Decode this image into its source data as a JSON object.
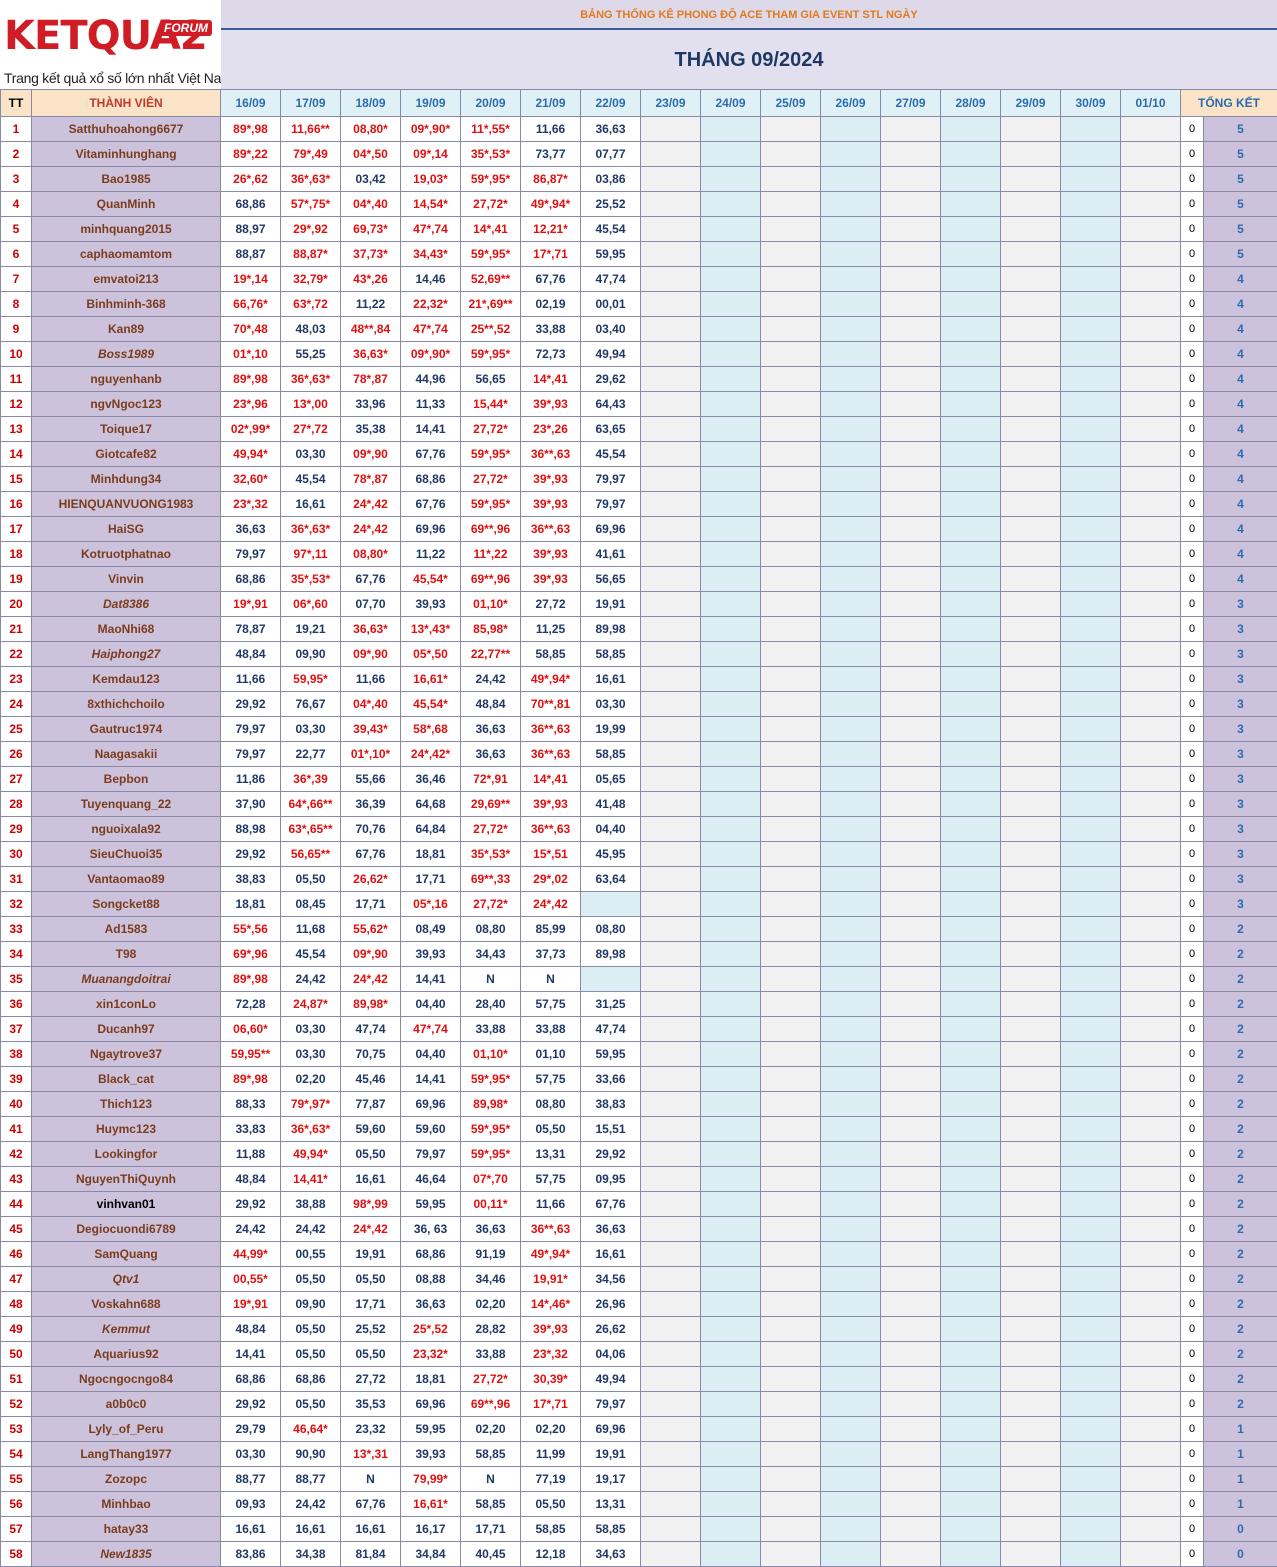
{
  "header": {
    "logo_text": "KETQUA2",
    "logo_forum": "FORUM",
    "logo_tagline": "Trang kết quả xổ số lớn nhất Việt Nam",
    "subtitle": "BẢNG THỐNG KÊ PHONG ĐỘ ACE THAM GIA EVENT STL NGÀY",
    "title": "THÁNG 09/2024"
  },
  "columns": {
    "tt": "TT",
    "member": "THÀNH VIÊN",
    "total": "TỔNG KẾT",
    "dates": [
      "16/09",
      "17/09",
      "18/09",
      "19/09",
      "20/09",
      "21/09",
      "22/09",
      "23/09",
      "24/09",
      "25/09",
      "26/09",
      "27/09",
      "28/09",
      "29/09",
      "30/09",
      "01/10"
    ]
  },
  "rows": [
    {
      "n": "1",
      "name": "Satthuhoahong6677",
      "v": [
        "89*,98",
        "11,66**",
        "08,80*",
        "09*,90*",
        "11*,55*",
        "11,66",
        "36,63"
      ],
      "z": "0",
      "s": "5"
    },
    {
      "n": "2",
      "name": "Vitaminhunghang",
      "v": [
        "89*,22",
        "79*,49",
        "04*,50",
        "09*,14",
        "35*,53*",
        "73,77",
        "07,77"
      ],
      "z": "0",
      "s": "5"
    },
    {
      "n": "3",
      "name": "Bao1985",
      "v": [
        "26*,62",
        "36*,63*",
        "03,42",
        "19,03*",
        "59*,95*",
        "86,87*",
        "03,86"
      ],
      "z": "0",
      "s": "5"
    },
    {
      "n": "4",
      "name": "QuanMinh",
      "v": [
        "68,86",
        "57*,75*",
        "04*,40",
        "14,54*",
        "27,72*",
        "49*,94*",
        "25,52"
      ],
      "z": "0",
      "s": "5"
    },
    {
      "n": "5",
      "name": "minhquang2015",
      "v": [
        "88,97",
        "29*,92",
        "69,73*",
        "47*,74",
        "14*,41",
        "12,21*",
        "45,54"
      ],
      "z": "0",
      "s": "5"
    },
    {
      "n": "6",
      "name": "caphaomamtom",
      "v": [
        "88,87",
        "88,87*",
        "37,73*",
        "34,43*",
        "59*,95*",
        "17*,71",
        "59,95"
      ],
      "z": "0",
      "s": "5"
    },
    {
      "n": "7",
      "name": "emvatoi213",
      "v": [
        "19*,14",
        "32,79*",
        "43*,26",
        "14,46",
        "52,69**",
        "67,76",
        "47,74"
      ],
      "z": "0",
      "s": "4"
    },
    {
      "n": "8",
      "name": "Binhminh-368",
      "v": [
        "66,76*",
        "63*,72",
        "11,22",
        "22,32*",
        "21*,69**",
        "02,19",
        "00,01"
      ],
      "z": "0",
      "s": "4"
    },
    {
      "n": "9",
      "name": "Kan89",
      "v": [
        "70*,48",
        "48,03",
        "48**,84",
        "47*,74",
        "25**,52",
        "33,88",
        "03,40"
      ],
      "z": "0",
      "s": "4"
    },
    {
      "n": "10",
      "name": "Boss1989",
      "it": true,
      "v": [
        "01*,10",
        "55,25",
        "36,63*",
        "09*,90*",
        "59*,95*",
        "72,73",
        "49,94"
      ],
      "z": "0",
      "s": "4"
    },
    {
      "n": "11",
      "name": "nguyenhanb",
      "v": [
        "89*,98",
        "36*,63*",
        "78*,87",
        "44,96",
        "56,65",
        "14*,41",
        "29,62"
      ],
      "z": "0",
      "s": "4"
    },
    {
      "n": "12",
      "name": "ngvNgoc123",
      "v": [
        "23*,96",
        "13*,00",
        "33,96",
        "11,33",
        "15,44*",
        "39*,93",
        "64,43"
      ],
      "z": "0",
      "s": "4"
    },
    {
      "n": "13",
      "name": "Toique17",
      "v": [
        "02*,99*",
        "27*,72",
        "35,38",
        "14,41",
        "27,72*",
        "23*,26",
        "63,65"
      ],
      "z": "0",
      "s": "4"
    },
    {
      "n": "14",
      "name": "Giotcafe82",
      "v": [
        "49,94*",
        "03,30",
        "09*,90",
        "67,76",
        "59*,95*",
        "36**,63",
        "45,54"
      ],
      "z": "0",
      "s": "4"
    },
    {
      "n": "15",
      "name": "Minhdung34",
      "v": [
        "32,60*",
        "45,54",
        "78*,87",
        "68,86",
        "27,72*",
        "39*,93",
        "79,97"
      ],
      "z": "0",
      "s": "4"
    },
    {
      "n": "16",
      "name": "HIENQUANVUONG1983",
      "v": [
        "23*,32",
        "16,61",
        "24*,42",
        "67,76",
        "59*,95*",
        "39*,93",
        "79,97"
      ],
      "z": "0",
      "s": "4"
    },
    {
      "n": "17",
      "name": "HaiSG",
      "v": [
        "36,63",
        "36*,63*",
        "24*,42",
        "69,96",
        "69**,96",
        "36**,63",
        "69,96"
      ],
      "z": "0",
      "s": "4"
    },
    {
      "n": "18",
      "name": "Kotruotphatnao",
      "v": [
        "79,97",
        "97*,11",
        "08,80*",
        "11,22",
        "11*,22",
        "39*,93",
        "41,61"
      ],
      "z": "0",
      "s": "4"
    },
    {
      "n": "19",
      "name": "Vinvin",
      "v": [
        "68,86",
        "35*,53*",
        "67,76",
        "45,54*",
        "69**,96",
        "39*,93",
        "56,65"
      ],
      "z": "0",
      "s": "4"
    },
    {
      "n": "20",
      "name": "Dat8386",
      "it": true,
      "v": [
        "19*,91",
        "06*,60",
        "07,70",
        "39,93",
        "01,10*",
        "27,72",
        "19,91"
      ],
      "z": "0",
      "s": "3"
    },
    {
      "n": "21",
      "name": "MaoNhi68",
      "v": [
        "78,87",
        "19,21",
        "36,63*",
        "13*,43*",
        "85,98*",
        "11,25",
        "89,98"
      ],
      "z": "0",
      "s": "3"
    },
    {
      "n": "22",
      "name": "Haiphong27",
      "it": true,
      "v": [
        "48,84",
        "09,90",
        "09*,90",
        "05*,50",
        "22,77**",
        "58,85",
        "58,85"
      ],
      "z": "0",
      "s": "3"
    },
    {
      "n": "23",
      "name": "Kemdau123",
      "v": [
        "11,66",
        "59,95*",
        "11,66",
        "16,61*",
        "24,42",
        "49*,94*",
        "16,61"
      ],
      "z": "0",
      "s": "3"
    },
    {
      "n": "24",
      "name": "8xthichchoilo",
      "v": [
        "29,92",
        "76,67",
        "04*,40",
        "45,54*",
        "48,84",
        "70**,81",
        "03,30"
      ],
      "z": "0",
      "s": "3"
    },
    {
      "n": "25",
      "name": "Gautruc1974",
      "v": [
        "79,97",
        "03,30",
        "39,43*",
        "58*,68",
        "36,63",
        "36**,63",
        "19,99"
      ],
      "z": "0",
      "s": "3"
    },
    {
      "n": "26",
      "name": "Naagasakii",
      "v": [
        "79,97",
        "22,77",
        "01*,10*",
        "24*,42*",
        "36,63",
        "36**,63",
        "58,85"
      ],
      "z": "0",
      "s": "3"
    },
    {
      "n": "27",
      "name": "Bepbon",
      "v": [
        "11,86",
        "36*,39",
        "55,66",
        "36,46",
        "72*,91",
        "14*,41",
        "05,65"
      ],
      "z": "0",
      "s": "3"
    },
    {
      "n": "28",
      "name": "Tuyenquang_22",
      "v": [
        "37,90",
        "64*,66**",
        "36,39",
        "64,68",
        "29,69**",
        "39*,93",
        "41,48"
      ],
      "z": "0",
      "s": "3"
    },
    {
      "n": "29",
      "name": "nguoixala92",
      "v": [
        "88,98",
        "63*,65**",
        "70,76",
        "64,84",
        "27,72*",
        "36**,63",
        "04,40"
      ],
      "z": "0",
      "s": "3"
    },
    {
      "n": "30",
      "name": "SieuChuoi35",
      "v": [
        "29,92",
        "56,65**",
        "67,76",
        "18,81",
        "35*,53*",
        "15*,51",
        "45,95"
      ],
      "z": "0",
      "s": "3"
    },
    {
      "n": "31",
      "name": "Vantaomao89",
      "v": [
        "38,83",
        "05,50",
        "26,62*",
        "17,71",
        "69**,33",
        "29*,02",
        "63,64"
      ],
      "z": "0",
      "s": "3"
    },
    {
      "n": "32",
      "name": "Songcket88",
      "v": [
        "18,81",
        "08,45",
        "17,71",
        "05*,16",
        "27,72*",
        "24*,42",
        ""
      ],
      "z": "0",
      "s": "3"
    },
    {
      "n": "33",
      "name": "Ad1583",
      "v": [
        "55*,56",
        "11,68",
        "55,62*",
        "08,49",
        "08,80",
        "85,99",
        "08,80"
      ],
      "z": "0",
      "s": "2"
    },
    {
      "n": "34",
      "name": "T98",
      "v": [
        "69*,96",
        "45,54",
        "09*,90",
        "39,93",
        "34,43",
        "37,73",
        "89,98"
      ],
      "z": "0",
      "s": "2"
    },
    {
      "n": "35",
      "name": "Muanangdoitrai",
      "it": true,
      "v": [
        "89*,98",
        "24,42",
        "24*,42",
        "14,41",
        "N",
        "N",
        ""
      ],
      "z": "0",
      "s": "2"
    },
    {
      "n": "36",
      "name": "xin1conLo",
      "v": [
        "72,28",
        "24,87*",
        "89,98*",
        "04,40",
        "28,40",
        "57,75",
        "31,25"
      ],
      "z": "0",
      "s": "2"
    },
    {
      "n": "37",
      "name": "Ducanh97",
      "v": [
        "06,60*",
        "03,30",
        "47,74",
        "47*,74",
        "33,88",
        "33,88",
        "47,74"
      ],
      "z": "0",
      "s": "2"
    },
    {
      "n": "38",
      "name": "Ngaytrove37",
      "v": [
        "59,95**",
        "03,30",
        "70,75",
        "04,40",
        "01,10*",
        "01,10",
        "59,95"
      ],
      "z": "0",
      "s": "2"
    },
    {
      "n": "39",
      "name": "Black_cat",
      "v": [
        "89*,98",
        "02,20",
        "45,46",
        "14,41",
        "59*,95*",
        "57,75",
        "33,66"
      ],
      "z": "0",
      "s": "2"
    },
    {
      "n": "40",
      "name": "Thich123",
      "v": [
        "88,33",
        "79*,97*",
        "77,87",
        "69,96",
        "89,98*",
        "08,80",
        "38,83"
      ],
      "z": "0",
      "s": "2"
    },
    {
      "n": "41",
      "name": "Huymc123",
      "v": [
        "33,83",
        "36*,63*",
        "59,60",
        "59,60",
        "59*,95*",
        "05,50",
        "15,51"
      ],
      "z": "0",
      "s": "2"
    },
    {
      "n": "42",
      "name": "Lookingfor",
      "v": [
        "11,88",
        "49,94*",
        "05,50",
        "79,97",
        "59*,95*",
        "13,31",
        "29,92"
      ],
      "z": "0",
      "s": "2"
    },
    {
      "n": "43",
      "name": "NguyenThiQuynh",
      "v": [
        "48,84",
        "14,41*",
        "16,61",
        "46,64",
        "07*,70",
        "57,75",
        "09,95"
      ],
      "z": "0",
      "s": "2"
    },
    {
      "n": "44",
      "name": "vinhvan01",
      "bk": true,
      "v": [
        "29,92",
        "38,88",
        "98*,99",
        "59,95",
        "00,11*",
        "11,66",
        "67,76"
      ],
      "z": "0",
      "s": "2"
    },
    {
      "n": "45",
      "name": "Degiocuondi6789",
      "v": [
        "24,42",
        "24,42",
        "24*,42",
        "36, 63",
        "36,63",
        "36**,63",
        "36,63"
      ],
      "z": "0",
      "s": "2"
    },
    {
      "n": "46",
      "name": "SamQuang",
      "v": [
        "44,99*",
        "00,55",
        "19,91",
        "68,86",
        "91,19",
        "49*,94*",
        "16,61"
      ],
      "z": "0",
      "s": "2"
    },
    {
      "n": "47",
      "name": "Qtv1",
      "it": true,
      "v": [
        "00,55*",
        "05,50",
        "05,50",
        "08,88",
        "34,46",
        "19,91*",
        "34,56"
      ],
      "z": "0",
      "s": "2"
    },
    {
      "n": "48",
      "name": "Voskahn688",
      "v": [
        "19*,91",
        "09,90",
        "17,71",
        "36,63",
        "02,20",
        "14*,46*",
        "26,96"
      ],
      "z": "0",
      "s": "2"
    },
    {
      "n": "49",
      "name": "Kemmut",
      "it": true,
      "v": [
        "48,84",
        "05,50",
        "25,52",
        "25*,52",
        "28,82",
        "39*,93",
        "26,62"
      ],
      "z": "0",
      "s": "2"
    },
    {
      "n": "50",
      "name": "Aquarius92",
      "v": [
        "14,41",
        "05,50",
        "05,50",
        "23,32*",
        "33,88",
        "23*,32",
        "04,06"
      ],
      "z": "0",
      "s": "2"
    },
    {
      "n": "51",
      "name": "Ngocngocngo84",
      "v": [
        "68,86",
        "68,86",
        "27,72",
        "18,81",
        "27,72*",
        "30,39*",
        "49,94"
      ],
      "z": "0",
      "s": "2"
    },
    {
      "n": "52",
      "name": "a0b0c0",
      "v": [
        "29,92",
        "05,50",
        "35,53",
        "69,96",
        "69**,96",
        "17*,71",
        "79,97"
      ],
      "z": "0",
      "s": "2"
    },
    {
      "n": "53",
      "name": "Lyly_of_Peru",
      "v": [
        "29,79",
        "46,64*",
        "23,32",
        "59,95",
        "02,20",
        "02,20",
        "69,96"
      ],
      "z": "0",
      "s": "1"
    },
    {
      "n": "54",
      "name": "LangThang1977",
      "v": [
        "03,30",
        "90,90",
        "13*,31",
        "39,93",
        "58,85",
        "11,99",
        "19,91"
      ],
      "z": "0",
      "s": "1"
    },
    {
      "n": "55",
      "name": "Zozopc",
      "v": [
        "88,77",
        "88,77",
        "N",
        "79,99*",
        "N",
        "77,19",
        "19,17"
      ],
      "z": "0",
      "s": "1"
    },
    {
      "n": "56",
      "name": "Minhbao",
      "v": [
        "09,93",
        "24,42",
        "67,76",
        "16,61*",
        "58,85",
        "05,50",
        "13,31"
      ],
      "z": "0",
      "s": "1"
    },
    {
      "n": "57",
      "name": "hatay33",
      "v": [
        "16,61",
        "16,61",
        "16,61",
        "16,17",
        "17,71",
        "58,85",
        "58,85"
      ],
      "z": "0",
      "s": "0"
    },
    {
      "n": "58",
      "name": "New1835",
      "it": true,
      "v": [
        "83,86",
        "34,38",
        "81,84",
        "34,84",
        "40,45",
        "12,18",
        "34,63"
      ],
      "z": "0",
      "s": "0"
    }
  ]
}
